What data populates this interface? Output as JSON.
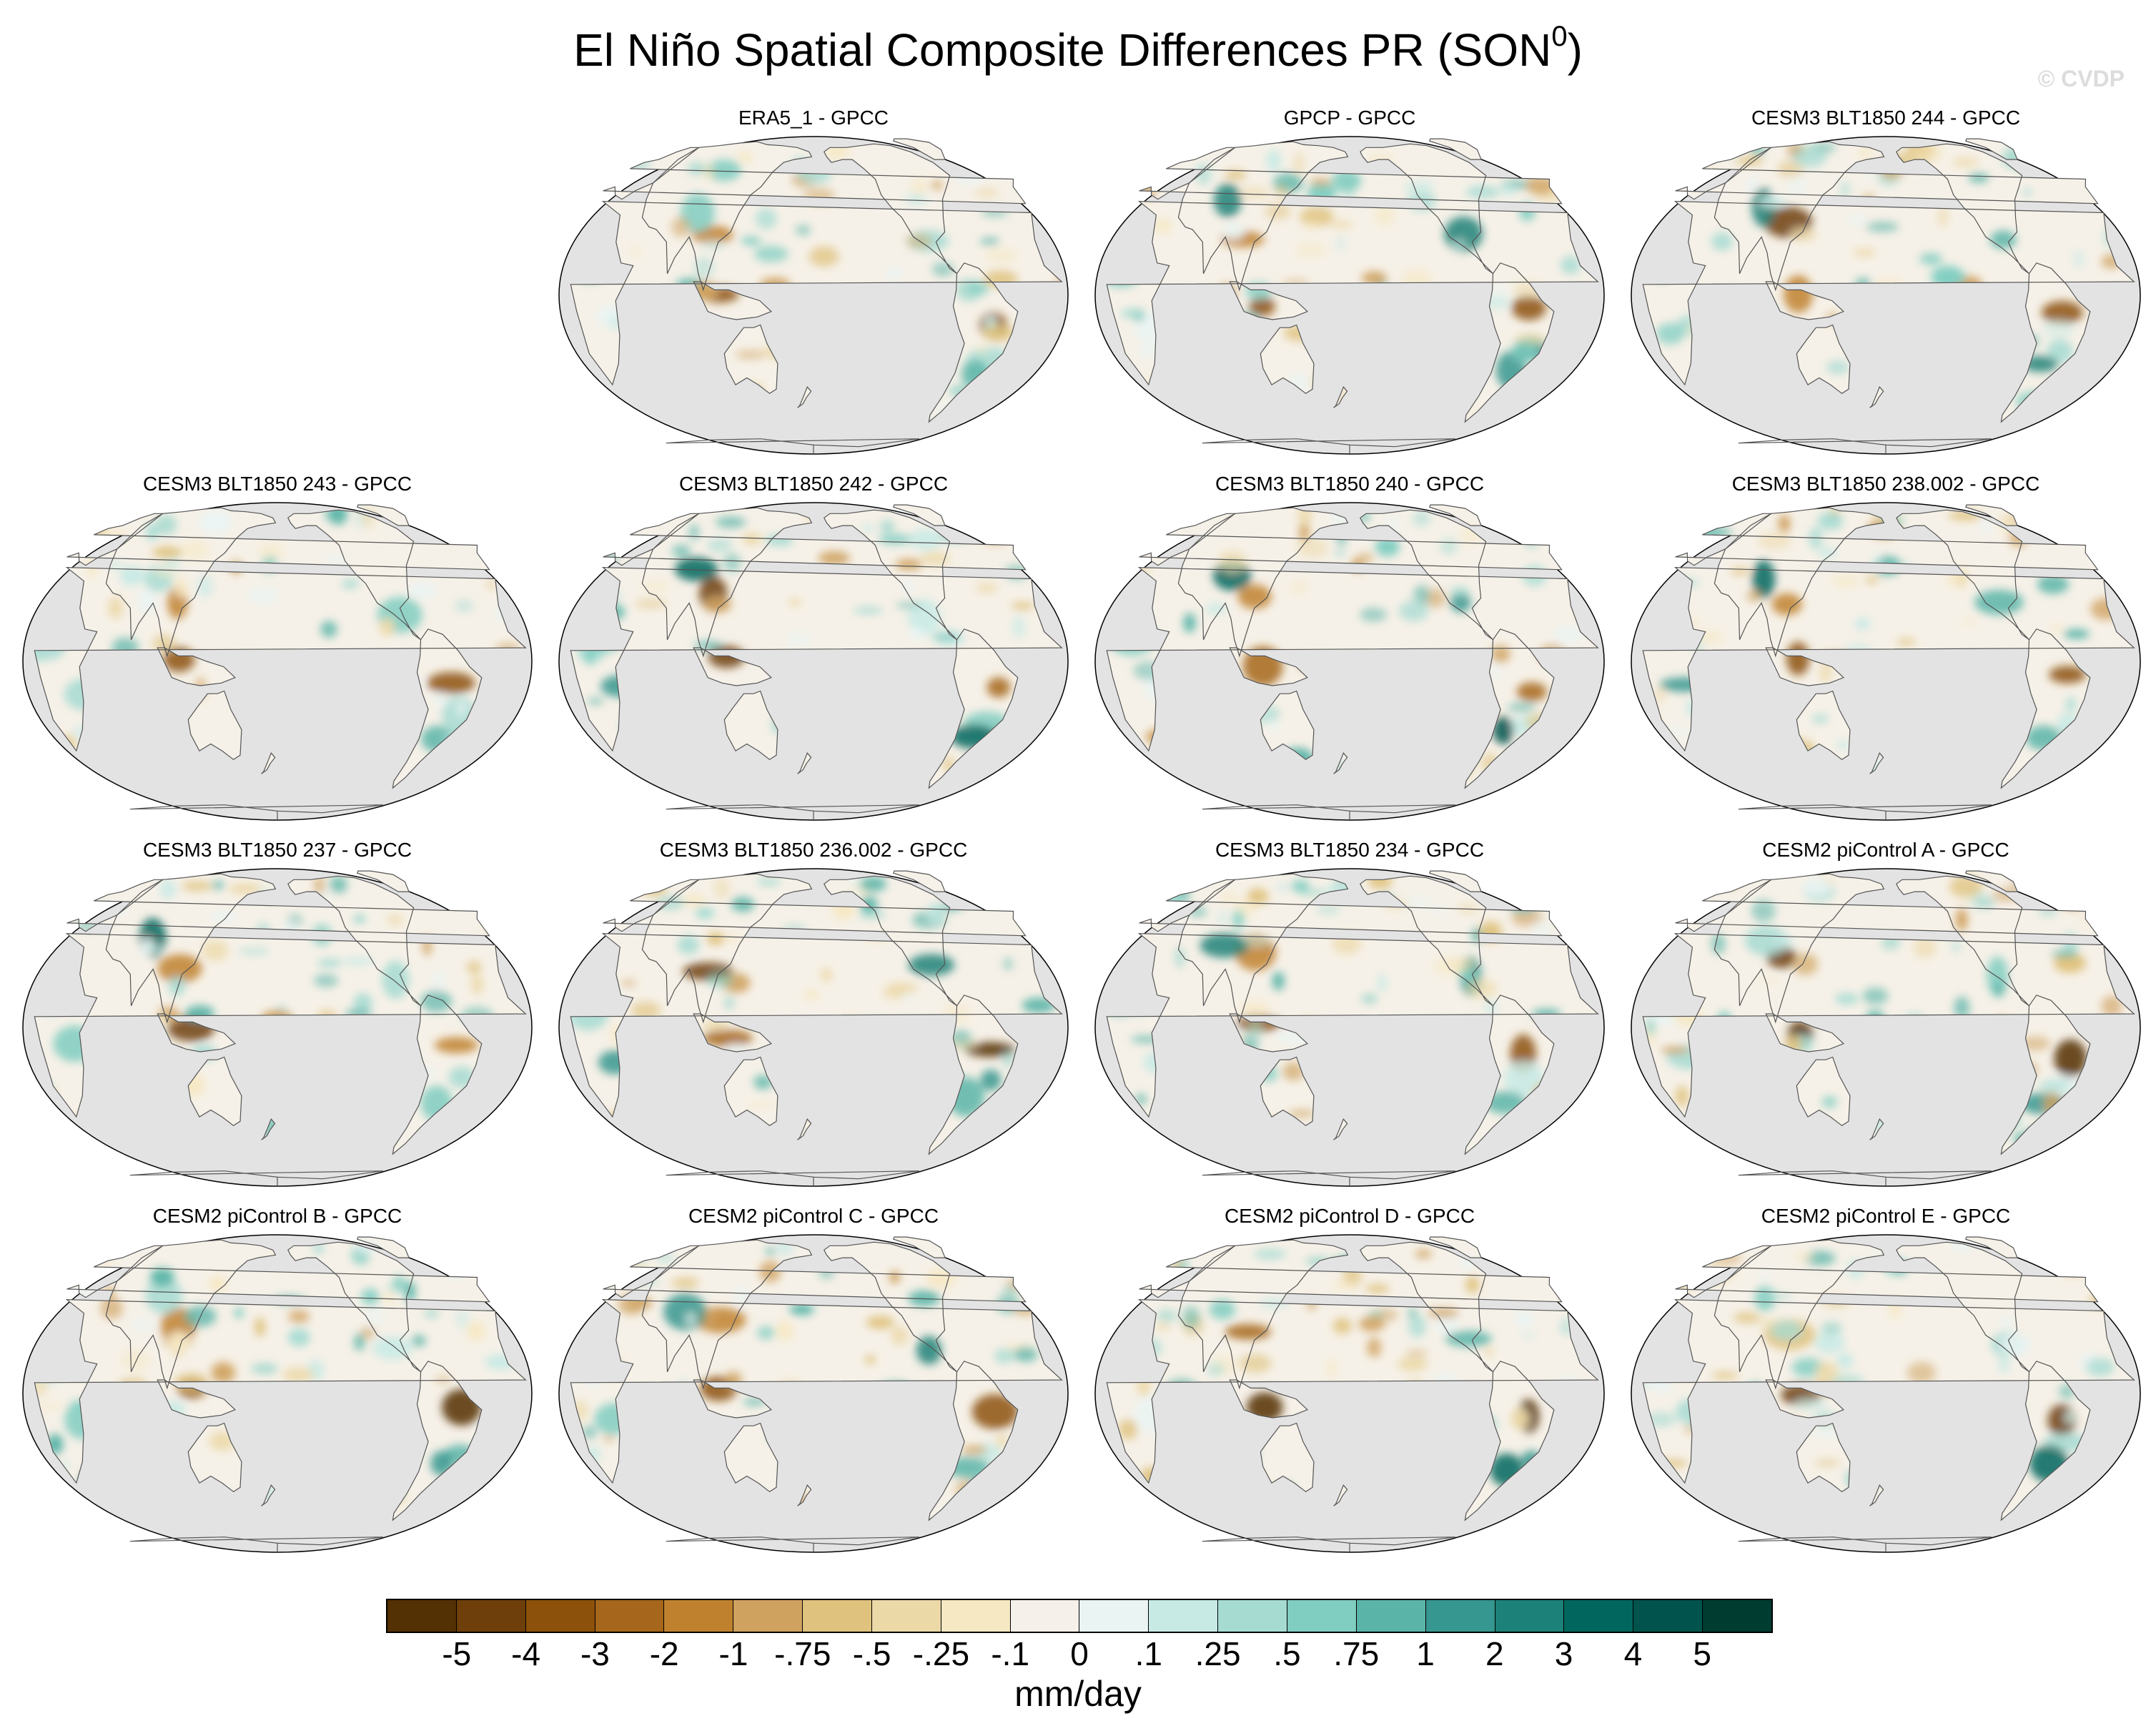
{
  "title": "El Niño Spatial Composite Differences PR (SON",
  "title_sup": "0",
  "title_close": ")",
  "watermark": "© CVDP",
  "panels": [
    {
      "title": "ERA5_1 - GPCC",
      "pattern": 0
    },
    {
      "title": "GPCP - GPCC",
      "pattern": 1
    },
    {
      "title": "CESM3 BLT1850 244 - GPCC",
      "pattern": 2
    },
    {
      "title": "CESM3 BLT1850 243 - GPCC",
      "pattern": 3
    },
    {
      "title": "CESM3 BLT1850 242 - GPCC",
      "pattern": 4
    },
    {
      "title": "CESM3 BLT1850 240 - GPCC",
      "pattern": 5
    },
    {
      "title": "CESM3 BLT1850 238.002 - GPCC",
      "pattern": 6
    },
    {
      "title": "CESM3 BLT1850 237 - GPCC",
      "pattern": 7
    },
    {
      "title": "CESM3 BLT1850 236.002 - GPCC",
      "pattern": 8
    },
    {
      "title": "CESM3 BLT1850 234 - GPCC",
      "pattern": 9
    },
    {
      "title": "CESM2 piControl A - GPCC",
      "pattern": 10
    },
    {
      "title": "CESM2 piControl B - GPCC",
      "pattern": 11
    },
    {
      "title": "CESM2 piControl C - GPCC",
      "pattern": 12
    },
    {
      "title": "CESM2 piControl D - GPCC",
      "pattern": 13
    },
    {
      "title": "CESM2 piControl E - GPCC",
      "pattern": 14
    }
  ],
  "colorbar": {
    "labels": [
      "-5",
      "-4",
      "-3",
      "-2",
      "-1",
      "-.75",
      "-.5",
      "-.25",
      "-.1",
      "0",
      ".1",
      ".25",
      ".5",
      ".75",
      "1",
      "2",
      "3",
      "4",
      "5"
    ],
    "colors": [
      "#543005",
      "#6e3f0a",
      "#8c510a",
      "#a6661b",
      "#bf812d",
      "#cfa260",
      "#dfc27d",
      "#ecd9a8",
      "#f6e8c3",
      "#f5f1ea",
      "#eaf4f3",
      "#c7eae5",
      "#a6dbd2",
      "#80cdc1",
      "#5ab4a8",
      "#35978f",
      "#1c8178",
      "#01665e",
      "#01544d",
      "#003c30"
    ],
    "units": "mm/day"
  },
  "colors": {
    "ocean": "#e3e3e3",
    "coast": "#555555"
  }
}
